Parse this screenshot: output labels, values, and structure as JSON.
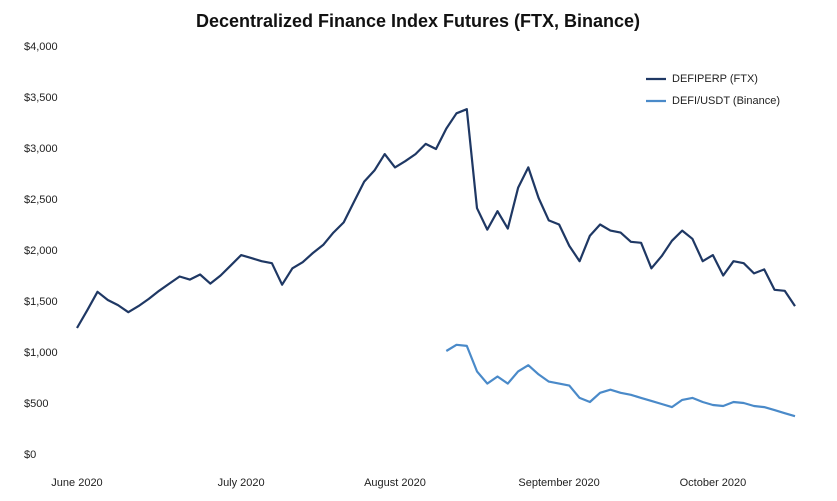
{
  "chart_data": {
    "type": "line",
    "title": "Decentralized Finance Index Futures (FTX, Binance)",
    "categories": [
      "June 2020",
      null,
      null,
      null,
      null,
      null,
      null,
      null,
      null,
      null,
      null,
      null,
      null,
      null,
      null,
      null,
      "July 2020",
      null,
      null,
      null,
      null,
      null,
      null,
      null,
      null,
      null,
      null,
      null,
      null,
      null,
      null,
      "August 2020",
      null,
      null,
      null,
      null,
      null,
      null,
      null,
      null,
      null,
      null,
      null,
      null,
      null,
      null,
      null,
      "September 2020",
      null,
      null,
      null,
      null,
      null,
      null,
      null,
      null,
      null,
      null,
      null,
      null,
      null,
      null,
      "October 2020",
      null,
      null,
      null,
      null,
      null,
      null,
      null,
      null
    ],
    "series": [
      {
        "name": "DEFIPERP (FTX)",
        "color": "#1f3864",
        "values": [
          1245,
          1420,
          1600,
          1520,
          1470,
          1400,
          1460,
          1530,
          1610,
          1680,
          1750,
          1720,
          1770,
          1680,
          1760,
          1860,
          1960,
          1930,
          1900,
          1880,
          1670,
          1830,
          1890,
          1980,
          2060,
          2180,
          2280,
          2480,
          2680,
          2790,
          2950,
          2820,
          2880,
          2950,
          3050,
          3000,
          3200,
          3350,
          3390,
          2420,
          2210,
          2390,
          2220,
          2620,
          2820,
          2520,
          2300,
          2260,
          2050,
          1900,
          2150,
          2260,
          2200,
          2180,
          2090,
          2080,
          1830,
          1950,
          2100,
          2200,
          2120,
          1900,
          1960,
          1760,
          1900,
          1880,
          1780,
          1820,
          1620,
          1610,
          1460
        ]
      },
      {
        "name": "DEFI/USDT (Binance)",
        "color": "#4a8ac9",
        "values": [
          null,
          null,
          null,
          null,
          null,
          null,
          null,
          null,
          null,
          null,
          null,
          null,
          null,
          null,
          null,
          null,
          null,
          null,
          null,
          null,
          null,
          null,
          null,
          null,
          null,
          null,
          null,
          null,
          null,
          null,
          null,
          null,
          null,
          null,
          null,
          null,
          1020,
          1080,
          1070,
          820,
          700,
          770,
          700,
          820,
          880,
          790,
          720,
          700,
          680,
          560,
          520,
          610,
          640,
          610,
          590,
          560,
          530,
          500,
          470,
          540,
          560,
          520,
          490,
          480,
          520,
          510,
          480,
          470,
          440,
          410,
          380
        ]
      }
    ],
    "ylim": [
      0,
      4000
    ],
    "yticks": [
      {
        "value": 0,
        "label": "$0"
      },
      {
        "value": 500,
        "label": "$500"
      },
      {
        "value": 1000,
        "label": "$1,000"
      },
      {
        "value": 1500,
        "label": "$1,500"
      },
      {
        "value": 2000,
        "label": "$2,000"
      },
      {
        "value": 2500,
        "label": "$2,500"
      },
      {
        "value": 3000,
        "label": "$3,000"
      },
      {
        "value": 3500,
        "label": "$3,500"
      },
      {
        "value": 4000,
        "label": "$4,000"
      }
    ],
    "grid": false,
    "legend": "top-right"
  }
}
